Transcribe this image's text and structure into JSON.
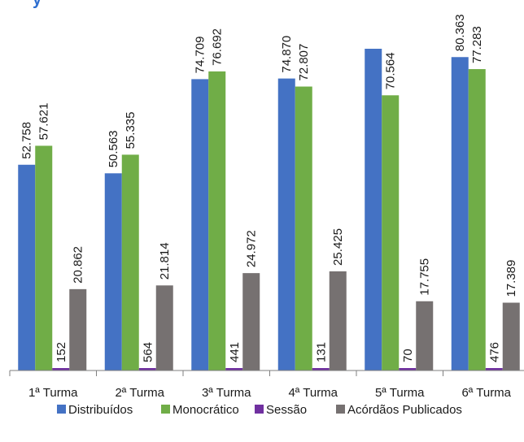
{
  "chart_data": {
    "type": "bar",
    "categories": [
      "1ª Turma",
      "2ª Turma",
      "3ª Turma",
      "4ª Turma",
      "5ª Turma",
      "6ª Turma"
    ],
    "series": [
      {
        "name": "Distribuídos",
        "color": "#4472c4",
        "values": [
          52758,
          50563,
          74709,
          74870,
          82500,
          80363
        ],
        "labels": [
          "52.758",
          "50.563",
          "74.709",
          "74.870",
          "",
          "80.363"
        ]
      },
      {
        "name": "Monocrático",
        "color": "#70ad47",
        "values": [
          57621,
          55335,
          76692,
          72807,
          70564,
          77283
        ],
        "labels": [
          "57.621",
          "55.335",
          "76.692",
          "72.807",
          "70.564",
          "77.283"
        ]
      },
      {
        "name": "Sessão",
        "color": "#7030a0",
        "values": [
          152,
          564,
          441,
          131,
          70,
          476
        ],
        "labels": [
          "152",
          "564",
          "441",
          "131",
          "70",
          "476"
        ]
      },
      {
        "name": "Acórdãos Publicados",
        "color": "#767171",
        "values": [
          20862,
          21814,
          24972,
          25425,
          17755,
          17389
        ],
        "labels": [
          "20.862",
          "21.814",
          "24.972",
          "25.425",
          "17.755",
          "17.389"
        ]
      }
    ],
    "title_fragment": "y",
    "ylim": [
      0,
      100000
    ],
    "grid": false,
    "legend_position": "bottom"
  }
}
